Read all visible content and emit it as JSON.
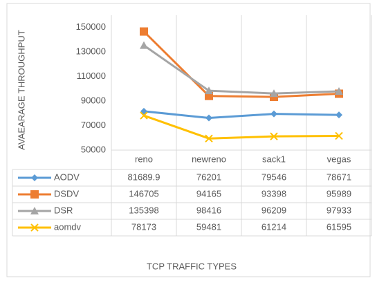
{
  "chart_data": {
    "type": "line",
    "y_label": "AVAEARAGE THROUGHPUT",
    "x_label": "TCP TRAFFIC TYPES",
    "categories": [
      "reno",
      "newreno",
      "sack1",
      "vegas"
    ],
    "series": [
      {
        "name": "AODV",
        "color": "#5b9bd5",
        "marker": "diamond",
        "values": [
          81689.9,
          76201,
          79546,
          78671
        ]
      },
      {
        "name": "DSDV",
        "color": "#ed7d31",
        "marker": "square",
        "values": [
          146705,
          94165,
          93398,
          95989
        ]
      },
      {
        "name": "DSR",
        "color": "#a5a5a5",
        "marker": "triangle",
        "values": [
          135398,
          98416,
          96209,
          97933
        ]
      },
      {
        "name": "aomdv",
        "color": "#ffc000",
        "marker": "x",
        "values": [
          78173,
          59481,
          61214,
          61595
        ]
      }
    ],
    "ylim": [
      50000,
      160000
    ],
    "yticks": [
      50000,
      70000,
      90000,
      110000,
      130000,
      150000
    ],
    "data_table": true,
    "grid": "vertical"
  }
}
